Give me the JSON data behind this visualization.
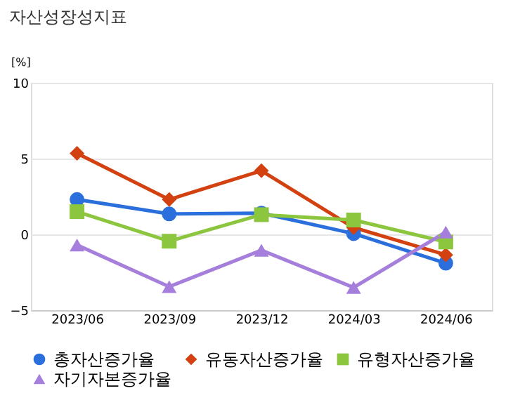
{
  "chart_data": {
    "type": "line",
    "title": "자산성장성지표",
    "ylabel": "[%]",
    "categories": [
      "2023/06",
      "2023/09",
      "2023/12",
      "2024/03",
      "2024/06"
    ],
    "series": [
      {
        "name": "총자산증가율",
        "color": "#2a6fdb",
        "marker": "circle",
        "values": [
          2.3,
          1.35,
          1.4,
          0.05,
          -1.9
        ]
      },
      {
        "name": "유동자산증가율",
        "color": "#d2410f",
        "marker": "diamond",
        "values": [
          5.35,
          2.3,
          4.2,
          0.45,
          -1.35
        ]
      },
      {
        "name": "유형자산증가율",
        "color": "#8cc63f",
        "marker": "square",
        "values": [
          1.5,
          -0.45,
          1.3,
          0.95,
          -0.5
        ]
      },
      {
        "name": "자기자본증가율",
        "color": "#a67fdc",
        "marker": "triangle",
        "values": [
          -0.7,
          -3.45,
          -1.05,
          -3.5,
          0.15
        ]
      }
    ],
    "ylim": [
      -5,
      10
    ],
    "yticks": [
      -5,
      0,
      5,
      10
    ],
    "grid": "y",
    "legend": "bottom"
  }
}
